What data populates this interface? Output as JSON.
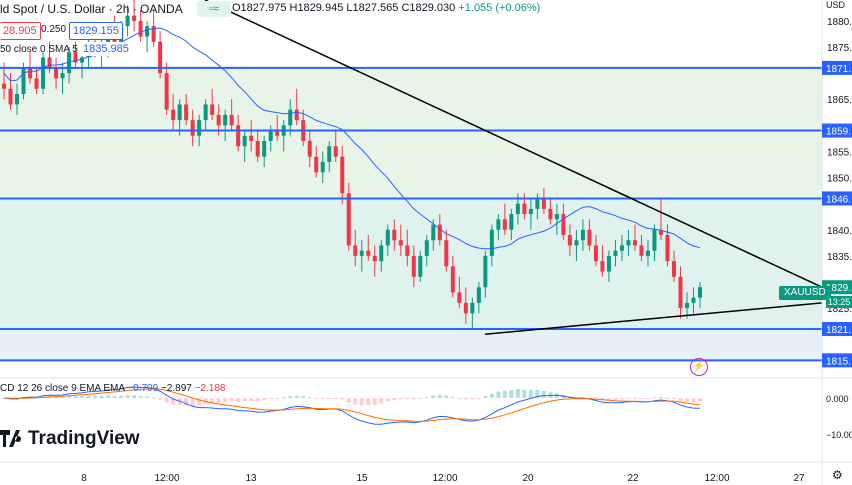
{
  "header": {
    "title": "ld Spot / U.S. Dollar · 2h · OANDA",
    "ohlc_open": "O1827.975",
    "ohlc_high": "H1829.945",
    "ohlc_low": "L1827.565",
    "ohlc_close": "C1829.030",
    "ohlc_change": "+1.055 (+0.06%)",
    "button_icon": "double-square-icon"
  },
  "trade": {
    "bid": "28.905",
    "spread": "0.250",
    "ask": "1829.155"
  },
  "sma": {
    "label": "50 close 0 SMA 5",
    "value": "1835.985"
  },
  "macd": {
    "label": "CD 12 26 close 9 EMA EMA",
    "v1": "−0.709",
    "v2": "−2.897",
    "v3": "−2.188"
  },
  "logo": {
    "text": "TradingView"
  },
  "symbol_tag": "XAUUSD",
  "countdown": "13:25",
  "price_tag": "1829.",
  "currency": "USD",
  "colors": {
    "up": "#089981",
    "down": "#f23645",
    "blue": "#2962ff",
    "orange": "#ff6d00",
    "zone": "#e8f4e8",
    "zone2": "#e0f2ee"
  },
  "chart_data": [
    {
      "type": "candlestick",
      "ylabel_unit": "USD",
      "y_ticks": [
        "1880.",
        "1875.",
        "1871.",
        "1865.",
        "1859.",
        "1855.",
        "1850.",
        "1846.",
        "1840.",
        "1835.",
        "1829.",
        "1825.",
        "1821.",
        "1815."
      ],
      "y_tick_values": [
        1880,
        1875,
        1871,
        1865,
        1859,
        1855,
        1850,
        1846,
        1840,
        1835,
        1829,
        1825,
        1821,
        1815
      ],
      "ylim": [
        1812,
        1884
      ],
      "x_ticks": [
        "8",
        "12:00",
        "13",
        "15",
        "12:00",
        "20",
        "22",
        "12:00",
        "27"
      ],
      "horizontal_levels": [
        1871,
        1859,
        1846,
        1821,
        1815
      ],
      "trendline_upper": [
        [
          1,
          1893
        ],
        [
          139,
          1828
        ]
      ],
      "trendline_lower": [
        [
          81,
          1820
        ],
        [
          139,
          1826
        ]
      ],
      "candles": [
        [
          1868,
          1872,
          1865,
          1867
        ],
        [
          1867,
          1870,
          1863,
          1864
        ],
        [
          1864,
          1868,
          1862,
          1866
        ],
        [
          1866,
          1872,
          1865,
          1871
        ],
        [
          1871,
          1874,
          1868,
          1869
        ],
        [
          1869,
          1871,
          1866,
          1867
        ],
        [
          1867,
          1874,
          1866,
          1873
        ],
        [
          1873,
          1876,
          1870,
          1871
        ],
        [
          1871,
          1873,
          1867,
          1869
        ],
        [
          1869,
          1872,
          1866,
          1870
        ],
        [
          1870,
          1875,
          1868,
          1874
        ],
        [
          1874,
          1876,
          1871,
          1872
        ],
        [
          1872,
          1874,
          1869,
          1873
        ],
        [
          1873,
          1877,
          1871,
          1876
        ],
        [
          1876,
          1879,
          1873,
          1874
        ],
        [
          1874,
          1877,
          1871,
          1875
        ],
        [
          1875,
          1879,
          1873,
          1878
        ],
        [
          1878,
          1881,
          1875,
          1876
        ],
        [
          1876,
          1880,
          1874,
          1879
        ],
        [
          1879,
          1883,
          1877,
          1881
        ],
        [
          1881,
          1884,
          1878,
          1880
        ],
        [
          1880,
          1882,
          1876,
          1877
        ],
        [
          1877,
          1880,
          1874,
          1879
        ],
        [
          1879,
          1882,
          1875,
          1876
        ],
        [
          1876,
          1878,
          1869,
          1870
        ],
        [
          1870,
          1872,
          1862,
          1863
        ],
        [
          1863,
          1866,
          1859,
          1861
        ],
        [
          1861,
          1865,
          1858,
          1864
        ],
        [
          1864,
          1866,
          1860,
          1861
        ],
        [
          1861,
          1863,
          1856,
          1858
        ],
        [
          1858,
          1862,
          1856,
          1861
        ],
        [
          1861,
          1865,
          1859,
          1864
        ],
        [
          1864,
          1867,
          1861,
          1862
        ],
        [
          1862,
          1864,
          1858,
          1860
        ],
        [
          1860,
          1863,
          1857,
          1862
        ],
        [
          1862,
          1865,
          1859,
          1860
        ],
        [
          1860,
          1862,
          1855,
          1856
        ],
        [
          1856,
          1859,
          1853,
          1858
        ],
        [
          1858,
          1861,
          1855,
          1857
        ],
        [
          1857,
          1859,
          1853,
          1854
        ],
        [
          1854,
          1858,
          1852,
          1857
        ],
        [
          1857,
          1860,
          1855,
          1859
        ],
        [
          1859,
          1862,
          1857,
          1858
        ],
        [
          1858,
          1861,
          1855,
          1860
        ],
        [
          1860,
          1865,
          1858,
          1863
        ],
        [
          1863,
          1867,
          1860,
          1861
        ],
        [
          1861,
          1863,
          1856,
          1857
        ],
        [
          1857,
          1859,
          1852,
          1854
        ],
        [
          1854,
          1856,
          1850,
          1851
        ],
        [
          1851,
          1855,
          1849,
          1853
        ],
        [
          1853,
          1857,
          1851,
          1856
        ],
        [
          1856,
          1859,
          1853,
          1854
        ],
        [
          1854,
          1856,
          1845,
          1847
        ],
        [
          1847,
          1849,
          1836,
          1837
        ],
        [
          1837,
          1840,
          1833,
          1835
        ],
        [
          1835,
          1838,
          1832,
          1836
        ],
        [
          1836,
          1839,
          1834,
          1835
        ],
        [
          1835,
          1837,
          1831,
          1834
        ],
        [
          1834,
          1838,
          1832,
          1837
        ],
        [
          1837,
          1841,
          1835,
          1840
        ],
        [
          1840,
          1842,
          1836,
          1838
        ],
        [
          1838,
          1841,
          1835,
          1837
        ],
        [
          1837,
          1840,
          1833,
          1835
        ],
        [
          1835,
          1837,
          1829,
          1831
        ],
        [
          1831,
          1836,
          1830,
          1835
        ],
        [
          1835,
          1839,
          1833,
          1838
        ],
        [
          1838,
          1842,
          1836,
          1841
        ],
        [
          1841,
          1843,
          1837,
          1838
        ],
        [
          1838,
          1840,
          1832,
          1833
        ],
        [
          1833,
          1835,
          1827,
          1828
        ],
        [
          1828,
          1831,
          1825,
          1826
        ],
        [
          1826,
          1829,
          1822,
          1824
        ],
        [
          1824,
          1827,
          1821,
          1826
        ],
        [
          1826,
          1830,
          1824,
          1829
        ],
        [
          1829,
          1836,
          1827,
          1835
        ],
        [
          1835,
          1841,
          1833,
          1840
        ],
        [
          1840,
          1843,
          1838,
          1842
        ],
        [
          1842,
          1845,
          1839,
          1840
        ],
        [
          1840,
          1844,
          1838,
          1843
        ],
        [
          1843,
          1847,
          1841,
          1845
        ],
        [
          1845,
          1847,
          1842,
          1843
        ],
        [
          1843,
          1846,
          1840,
          1844
        ],
        [
          1844,
          1847,
          1842,
          1846
        ],
        [
          1846,
          1848,
          1843,
          1844
        ],
        [
          1844,
          1846,
          1841,
          1842
        ],
        [
          1842,
          1845,
          1839,
          1843
        ],
        [
          1843,
          1845,
          1838,
          1839
        ],
        [
          1839,
          1841,
          1835,
          1837
        ],
        [
          1837,
          1840,
          1834,
          1838
        ],
        [
          1838,
          1842,
          1836,
          1840
        ],
        [
          1840,
          1842,
          1836,
          1837
        ],
        [
          1837,
          1839,
          1833,
          1834
        ],
        [
          1834,
          1837,
          1831,
          1832
        ],
        [
          1832,
          1836,
          1830,
          1835
        ],
        [
          1835,
          1838,
          1833,
          1836
        ],
        [
          1836,
          1839,
          1834,
          1837
        ],
        [
          1837,
          1840,
          1835,
          1838
        ],
        [
          1838,
          1841,
          1836,
          1837
        ],
        [
          1837,
          1839,
          1834,
          1835
        ],
        [
          1835,
          1838,
          1833,
          1836
        ],
        [
          1836,
          1841,
          1834,
          1840
        ],
        [
          1840,
          1846,
          1838,
          1839
        ],
        [
          1839,
          1841,
          1833,
          1834
        ],
        [
          1834,
          1836,
          1830,
          1831
        ],
        [
          1831,
          1833,
          1823,
          1825
        ],
        [
          1825,
          1828,
          1823,
          1826
        ],
        [
          1826,
          1829,
          1824,
          1827
        ],
        [
          1827,
          1830,
          1825,
          1829
        ]
      ]
    }
  ]
}
